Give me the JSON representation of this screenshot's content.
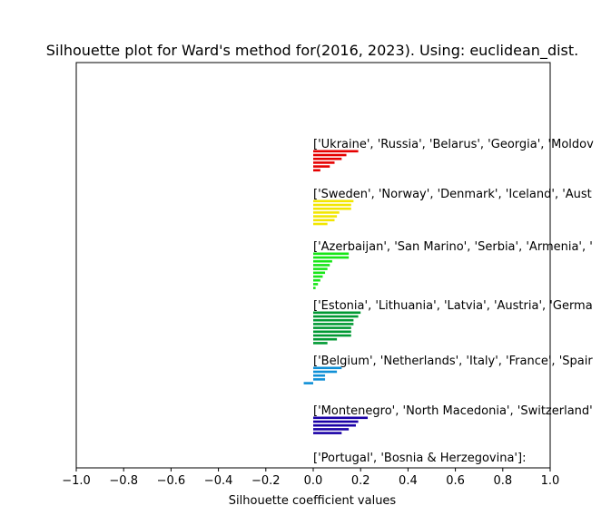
{
  "chart_data": {
    "type": "bar",
    "orientation": "horizontal",
    "title": "Silhouette plot for Ward's method for(2016, 2023). Using: euclidean_dist.",
    "xlabel": "Silhouette coefficient values",
    "ylabel": "",
    "xlim": [
      -1.0,
      1.0
    ],
    "xticks": [
      "−1.0",
      "−0.8",
      "−0.6",
      "−0.4",
      "−0.2",
      "0.0",
      "0.2",
      "0.4",
      "0.6",
      "0.8",
      "1.0"
    ],
    "xtick_values": [
      -1.0,
      -0.8,
      -0.6,
      -0.4,
      -0.2,
      0.0,
      0.2,
      0.4,
      0.6,
      0.8,
      1.0
    ],
    "grid": false,
    "clusters": [
      {
        "label": "['Ukraine', 'Russia', 'Belarus', 'Georgia', 'Moldov",
        "color": "#e50000",
        "values": [
          0.19,
          0.14,
          0.12,
          0.09,
          0.07,
          0.03
        ]
      },
      {
        "label": "['Sweden', 'Norway', 'Denmark', 'Iceland', 'Aust",
        "color": "#f2e600",
        "values": [
          0.17,
          0.16,
          0.16,
          0.11,
          0.1,
          0.09,
          0.06
        ]
      },
      {
        "label": "['Azerbaijan', 'San Marino', 'Serbia', 'Armenia', '",
        "color": "#17e617",
        "values": [
          0.15,
          0.15,
          0.08,
          0.07,
          0.06,
          0.05,
          0.04,
          0.03,
          0.02,
          0.01
        ]
      },
      {
        "label": "['Estonia', 'Lithuania', 'Latvia', 'Austria', 'Germa",
        "color": "#009933",
        "values": [
          0.2,
          0.19,
          0.17,
          0.17,
          0.16,
          0.16,
          0.16,
          0.1,
          0.06
        ]
      },
      {
        "label": "['Belgium', 'Netherlands', 'Italy', 'France', 'Spair",
        "color": "#0f8fd6",
        "values": [
          0.12,
          0.1,
          0.05,
          0.05,
          -0.04
        ]
      },
      {
        "label": "['Montenegro', 'North Macedonia', 'Switzerland'",
        "color": "#1a00a6",
        "values": [
          0.23,
          0.19,
          0.18,
          0.15,
          0.12
        ]
      },
      {
        "label": "['Portugal', 'Bosnia & Herzegovina']:",
        "color": "#000000",
        "values": []
      }
    ]
  }
}
